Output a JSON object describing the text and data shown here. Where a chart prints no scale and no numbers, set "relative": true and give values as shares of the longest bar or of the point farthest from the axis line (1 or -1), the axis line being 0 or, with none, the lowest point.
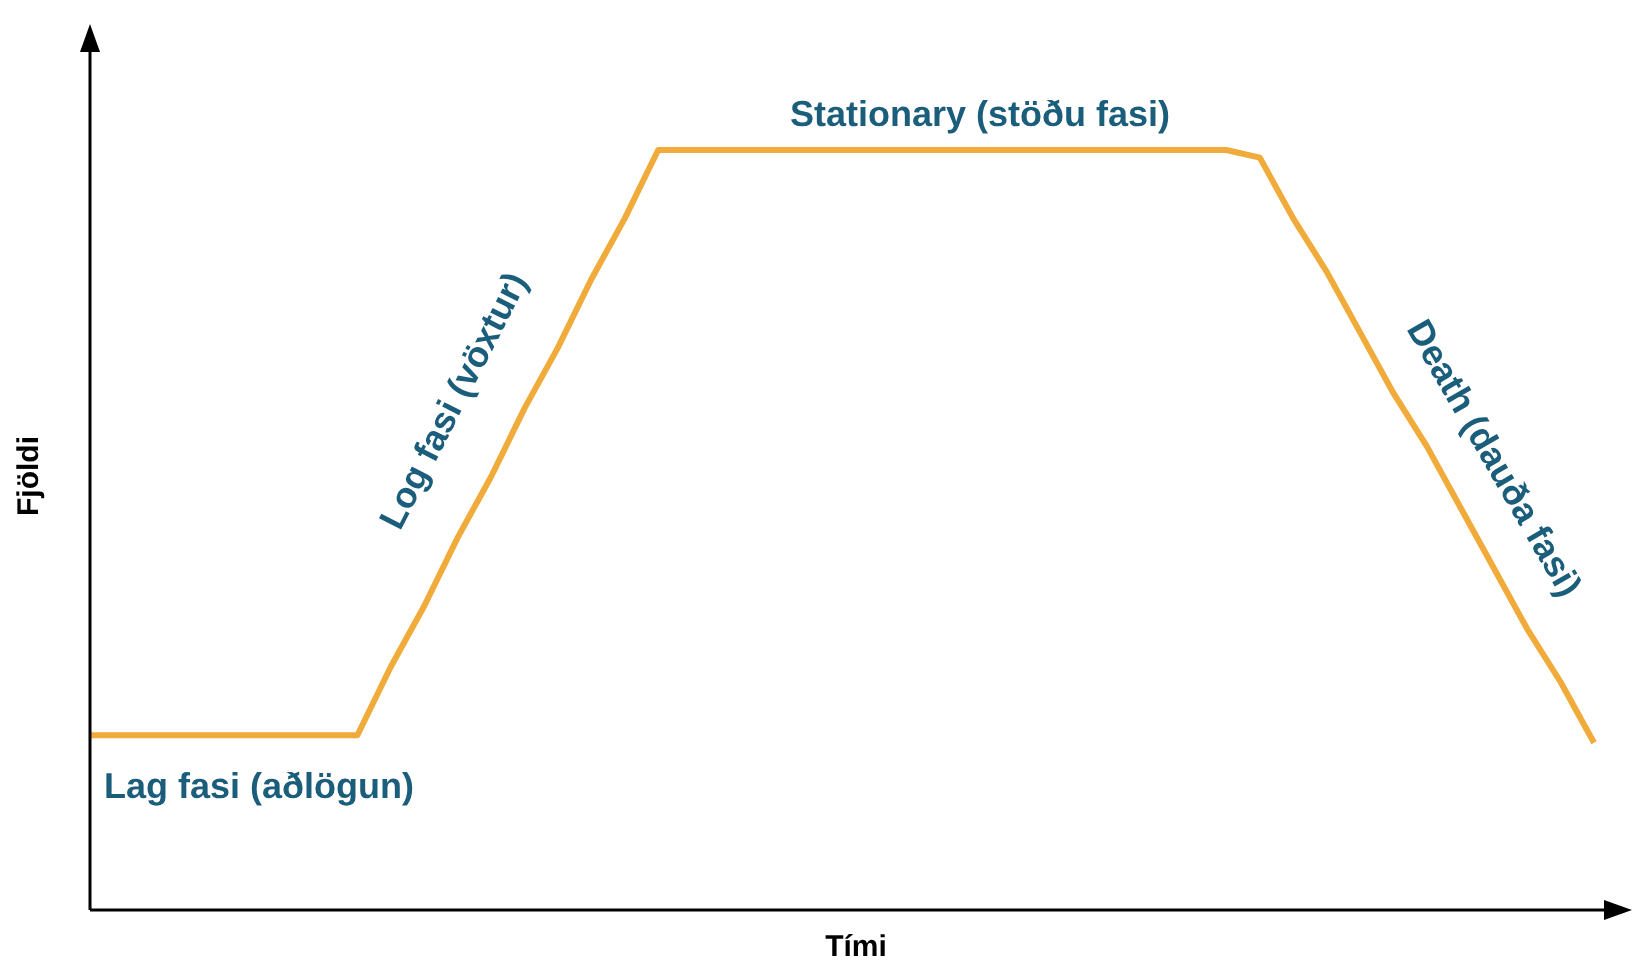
{
  "chart_data": {
    "type": "line",
    "relative": true,
    "xlabel": "Tími",
    "ylabel": "Fjöldi",
    "categories": [
      null,
      null,
      null,
      null,
      null,
      null,
      null,
      null,
      null,
      null,
      null,
      null,
      null,
      null,
      null,
      null,
      null,
      null,
      null,
      null,
      null,
      null,
      null,
      null,
      null,
      null,
      null,
      null,
      null,
      null,
      null,
      null,
      null,
      null,
      null,
      null,
      null,
      null,
      null,
      null,
      null,
      null,
      null,
      null,
      null,
      null
    ],
    "series": [
      {
        "color": "#f0ab3a",
        "values": [
          0.23,
          0.23,
          0.23,
          0.23,
          0.23,
          0.23,
          0.23,
          0.23,
          0.23,
          0.32,
          0.4,
          0.49,
          0.57,
          0.66,
          0.74,
          0.83,
          0.91,
          1,
          1,
          1,
          1,
          1,
          1,
          1,
          1,
          1,
          1,
          1,
          1,
          1,
          1,
          1,
          1,
          1,
          1,
          0.99,
          0.91,
          0.84,
          0.76,
          0.68,
          0.61,
          0.53,
          0.45,
          0.37,
          0.3,
          0.22
        ]
      }
    ],
    "annotations": [
      "Lag fasi (aðlögun)",
      "Log fasi (vöxtur)",
      "Stationary (stöðu fasi)",
      "Death (dauða fasi)"
    ],
    "marker": "none",
    "line_style": "solid"
  }
}
